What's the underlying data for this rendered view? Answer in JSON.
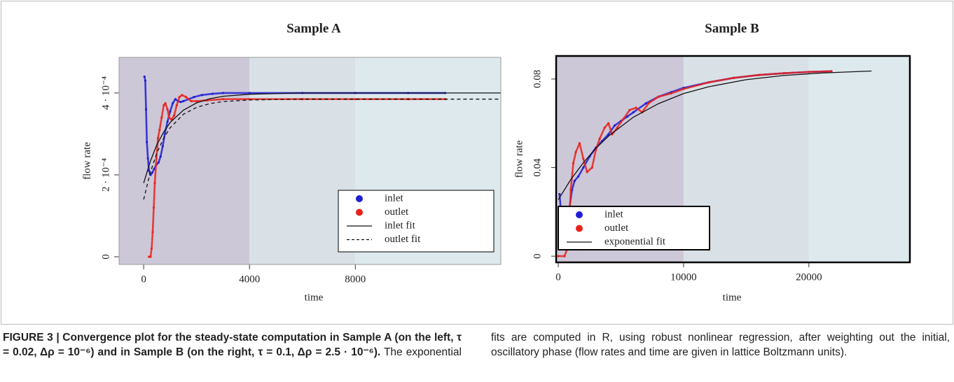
{
  "chart_data": [
    {
      "type": "scatter",
      "title": "Sample A",
      "x_label": "time",
      "y_label": "flow rate",
      "xlim": [
        -930,
        13500
      ],
      "ylim": [
        -1.88e-05,
        0.000487
      ],
      "xticks": [
        0,
        4000,
        8000
      ],
      "yticks": [
        0,
        {
          "value": 0.0002,
          "label": "2 · 10⁻⁴"
        },
        {
          "value": 0.0004,
          "label": "4 · 10⁻⁴"
        }
      ],
      "region_breaks": [
        4000,
        8000
      ],
      "region_colors": [
        "#cdc8d8",
        "#d9e1e6",
        "#dde9ed"
      ],
      "frame": "thin",
      "legend": "lower right",
      "series": [
        {
          "name": "inlet",
          "color": "#1f1fd6",
          "kind": "points",
          "x": [
            30,
            60,
            90,
            120,
            160,
            200,
            260,
            320,
            400,
            480,
            560,
            640,
            720,
            800,
            900,
            1000,
            1100,
            1200,
            1300,
            1400,
            1500,
            1700,
            1900,
            2200,
            2600,
            3000,
            4000,
            6000,
            8000,
            10000,
            11400
          ],
          "values": [
            0.00044,
            0.00043,
            0.00036,
            0.00028,
            0.00024,
            0.00021,
            0.0002,
            0.000205,
            0.000215,
            0.000225,
            0.00023,
            0.000245,
            0.00027,
            0.0003,
            0.00033,
            0.000355,
            0.000375,
            0.000385,
            0.00038,
            0.000378,
            0.00038,
            0.000385,
            0.00039,
            0.000395,
            0.000398,
            0.0004,
            0.0004,
            0.0004,
            0.0004,
            0.0004,
            0.0004
          ]
        },
        {
          "name": "outlet",
          "color": "#e8231c",
          "kind": "points",
          "x": [
            200,
            260,
            300,
            340,
            380,
            420,
            480,
            540,
            600,
            680,
            760,
            820,
            900,
            960,
            1050,
            1150,
            1250,
            1350,
            1450,
            1600,
            1800,
            2000,
            2400,
            3000,
            4000,
            6000,
            8000,
            10000,
            11400
          ],
          "values": [
            0,
            0,
            2e-05,
            6e-05,
            0.00012,
            0.00018,
            0.00024,
            0.00029,
            0.00031,
            0.00034,
            0.00037,
            0.000375,
            0.00036,
            0.00034,
            0.000335,
            0.000345,
            0.00037,
            0.00039,
            0.000395,
            0.00039,
            0.00038,
            0.00038,
            0.000382,
            0.000385,
            0.000385,
            0.000385,
            0.000385,
            0.000385,
            0.000385
          ]
        },
        {
          "name": "inlet fit",
          "color": "#111111",
          "kind": "line",
          "linestyle": "solid",
          "x": [
            0,
            250,
            500,
            750,
            1000,
            1500,
            2000,
            2500,
            3000,
            4000,
            6000,
            8000,
            10000,
            13500
          ],
          "values": [
            0.00018,
            0.000233,
            0.000274,
            0.000304,
            0.000328,
            0.000358,
            0.000376,
            0.000386,
            0.000392,
            0.000397,
            0.0004,
            0.0004,
            0.0004,
            0.0004
          ]
        },
        {
          "name": "outlet fit",
          "color": "#111111",
          "kind": "line",
          "linestyle": "dashed",
          "x": [
            0,
            250,
            500,
            750,
            1000,
            1500,
            2000,
            2500,
            3000,
            4000,
            6000,
            8000,
            10000,
            13500
          ],
          "values": [
            0.00014,
            0.000206,
            0.000254,
            0.000289,
            0.000315,
            0.000348,
            0.000365,
            0.000374,
            0.000379,
            0.000383,
            0.000385,
            0.000385,
            0.000385,
            0.000385
          ]
        }
      ]
    },
    {
      "type": "scatter",
      "title": "Sample B",
      "x_label": "time",
      "y_label": "flow rate",
      "xlim": [
        -170,
        28060
      ],
      "ylim": [
        -0.0028,
        0.0904
      ],
      "xticks": [
        0,
        10000,
        20000
      ],
      "yticks": [
        0,
        0.04,
        0.08
      ],
      "region_breaks": [
        10000,
        20000
      ],
      "region_colors": [
        "#cdc8d8",
        "#d9e1e6",
        "#dde9ed"
      ],
      "frame": "thick",
      "legend": "lower left",
      "series": [
        {
          "name": "inlet",
          "color": "#1f1fd6",
          "kind": "points",
          "x": [
            100,
            300,
            500,
            700,
            900,
            1100,
            1300,
            1600,
            2000,
            2500,
            3000,
            3500,
            4000,
            4500,
            5000,
            5500,
            6000,
            7000,
            8000,
            9000,
            10000,
            12000,
            14000,
            16000,
            18000,
            20000,
            21800
          ],
          "values": [
            0.028,
            0.015,
            0.012,
            0.02,
            0.022,
            0.03,
            0.034,
            0.036,
            0.04,
            0.045,
            0.049,
            0.052,
            0.055,
            0.059,
            0.061,
            0.063,
            0.065,
            0.069,
            0.072,
            0.074,
            0.076,
            0.0785,
            0.0805,
            0.0818,
            0.0826,
            0.0832,
            0.0835
          ]
        },
        {
          "name": "outlet",
          "color": "#e8231c",
          "kind": "points",
          "x": [
            0,
            500,
            800,
            1000,
            1200,
            1400,
            1700,
            2000,
            2300,
            2700,
            3000,
            3300,
            3700,
            4000,
            4300,
            4700,
            5200,
            5700,
            6200,
            6700,
            7200,
            8000,
            9000,
            10000,
            12000,
            14000,
            16000,
            18000,
            20000,
            21800
          ],
          "values": [
            0,
            0,
            0.005,
            0.03,
            0.042,
            0.047,
            0.051,
            0.044,
            0.038,
            0.04,
            0.048,
            0.053,
            0.058,
            0.06,
            0.055,
            0.058,
            0.062,
            0.066,
            0.067,
            0.065,
            0.069,
            0.072,
            0.0735,
            0.0755,
            0.0785,
            0.0805,
            0.0818,
            0.0826,
            0.0832,
            0.0835
          ]
        },
        {
          "name": "exponential fit",
          "color": "#111111",
          "kind": "line",
          "linestyle": "solid",
          "x": [
            0,
            1000,
            2000,
            3000,
            4000,
            6000,
            8000,
            10000,
            12000,
            15000,
            18000,
            21000,
            25000
          ],
          "values": [
            0.0255,
            0.0346,
            0.0422,
            0.0487,
            0.0542,
            0.0628,
            0.0689,
            0.0734,
            0.0765,
            0.0797,
            0.0816,
            0.0827,
            0.0836
          ]
        }
      ]
    }
  ],
  "caption": {
    "label": "FIGURE 3 |",
    "bold": "Convergence plot for the steady-state computation in Sample A (on the left, τ = 0.02, Δρ = 10⁻⁶) and in Sample B (on the right, τ = 0.1, Δρ = 2.5 · 10⁻⁶).",
    "text": "The exponential fits are computed in R, using robust nonlinear regression, after weighting out the initial, oscillatory phase (flow rates and time are given in lattice Boltzmann units)."
  }
}
